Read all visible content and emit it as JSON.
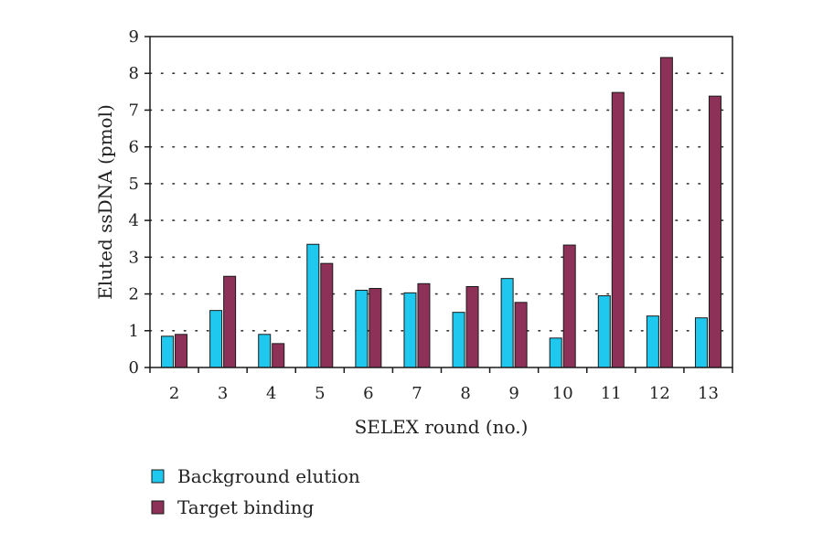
{
  "chart_data": {
    "type": "bar",
    "title": "",
    "xlabel": "SELEX round (no.)",
    "ylabel": "Eluted ssDNA (pmol)",
    "categories": [
      "2",
      "3",
      "4",
      "5",
      "6",
      "7",
      "8",
      "9",
      "10",
      "11",
      "12",
      "13"
    ],
    "ylim": [
      0,
      9
    ],
    "yticks": [
      0,
      1,
      2,
      3,
      4,
      5,
      6,
      7,
      8,
      9
    ],
    "grid": "horizontal dotted",
    "legend_position": "bottom-left",
    "series": [
      {
        "name": "Background elution",
        "color": "#1ec8ee",
        "values": [
          0.85,
          1.55,
          0.9,
          3.35,
          2.1,
          2.03,
          1.5,
          2.42,
          0.8,
          1.95,
          1.4,
          1.35
        ]
      },
      {
        "name": "Target binding",
        "color": "#8e3158",
        "values": [
          0.9,
          2.48,
          0.65,
          2.83,
          2.15,
          2.28,
          2.2,
          1.77,
          3.33,
          7.48,
          8.43,
          7.38
        ]
      }
    ]
  }
}
